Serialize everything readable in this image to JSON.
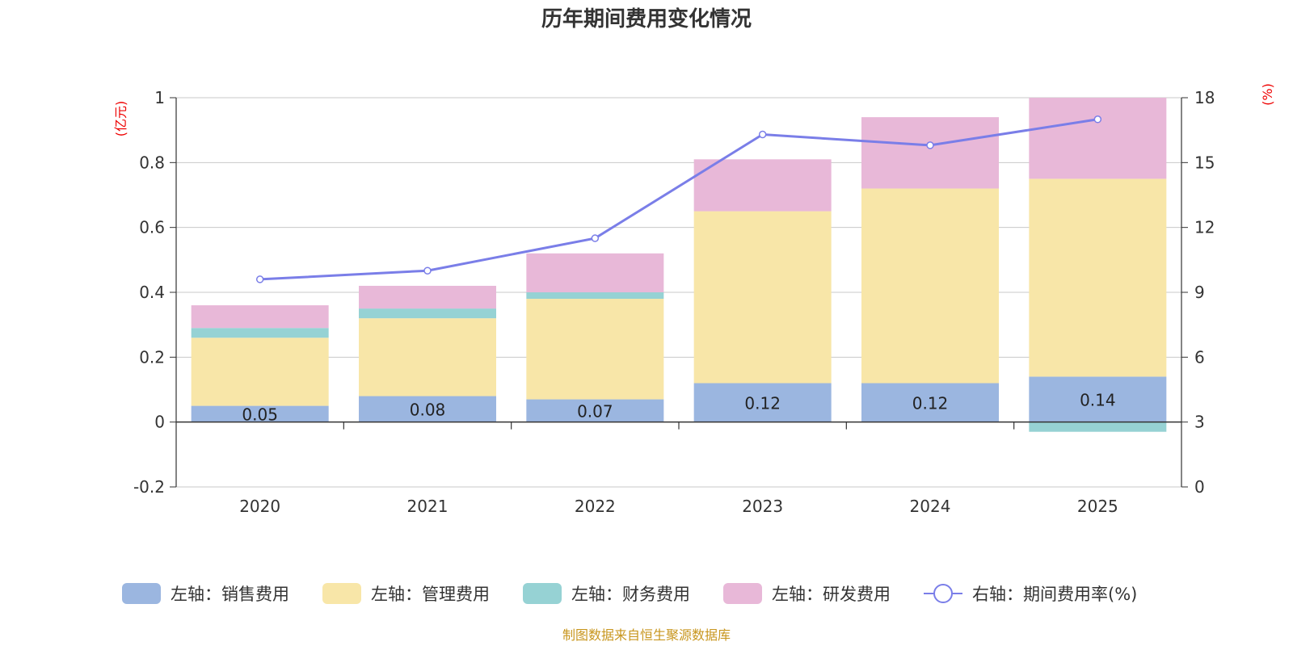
{
  "chart_data": {
    "type": "bar",
    "title": "历年期间费用变化情况",
    "categories": [
      "2020",
      "2021",
      "2022",
      "2023",
      "2024",
      "2025"
    ],
    "left_axis": {
      "unit": "(亿元)",
      "ylim": [
        -0.2,
        1
      ],
      "ticks": [
        "-0.2",
        "0",
        "0.2",
        "0.4",
        "0.6",
        "0.8",
        "1"
      ]
    },
    "right_axis": {
      "unit": "(%)",
      "ylim": [
        0,
        18
      ],
      "ticks": [
        "0",
        "3",
        "6",
        "9",
        "12",
        "15",
        "18"
      ]
    },
    "series": [
      {
        "name": "左轴：销售费用",
        "kind": "bar",
        "axis": "left",
        "color": "#9bb6e0",
        "values": [
          0.05,
          0.08,
          0.07,
          0.12,
          0.12,
          0.14
        ],
        "labels": [
          "0.05",
          "0.08",
          "0.07",
          "0.12",
          "0.12",
          "0.14"
        ]
      },
      {
        "name": "左轴：管理费用",
        "kind": "bar",
        "axis": "left",
        "color": "#f8e6a8",
        "values": [
          0.21,
          0.24,
          0.31,
          0.53,
          0.6,
          0.61
        ]
      },
      {
        "name": "左轴：财务费用",
        "kind": "bar",
        "axis": "left",
        "color": "#96d2d4",
        "values": [
          0.03,
          0.03,
          0.02,
          0.0,
          0.0,
          -0.03
        ]
      },
      {
        "name": "左轴：研发费用",
        "kind": "bar",
        "axis": "left",
        "color": "#e8b8d8",
        "values": [
          0.07,
          0.07,
          0.12,
          0.16,
          0.22,
          0.25
        ]
      },
      {
        "name": "右轴：期间费用率(%)",
        "kind": "line",
        "axis": "right",
        "color": "#7a7ee8",
        "values": [
          9.6,
          10.0,
          11.5,
          16.3,
          15.8,
          17.0
        ]
      }
    ]
  },
  "source_text": "制图数据来自恒生聚源数据库"
}
